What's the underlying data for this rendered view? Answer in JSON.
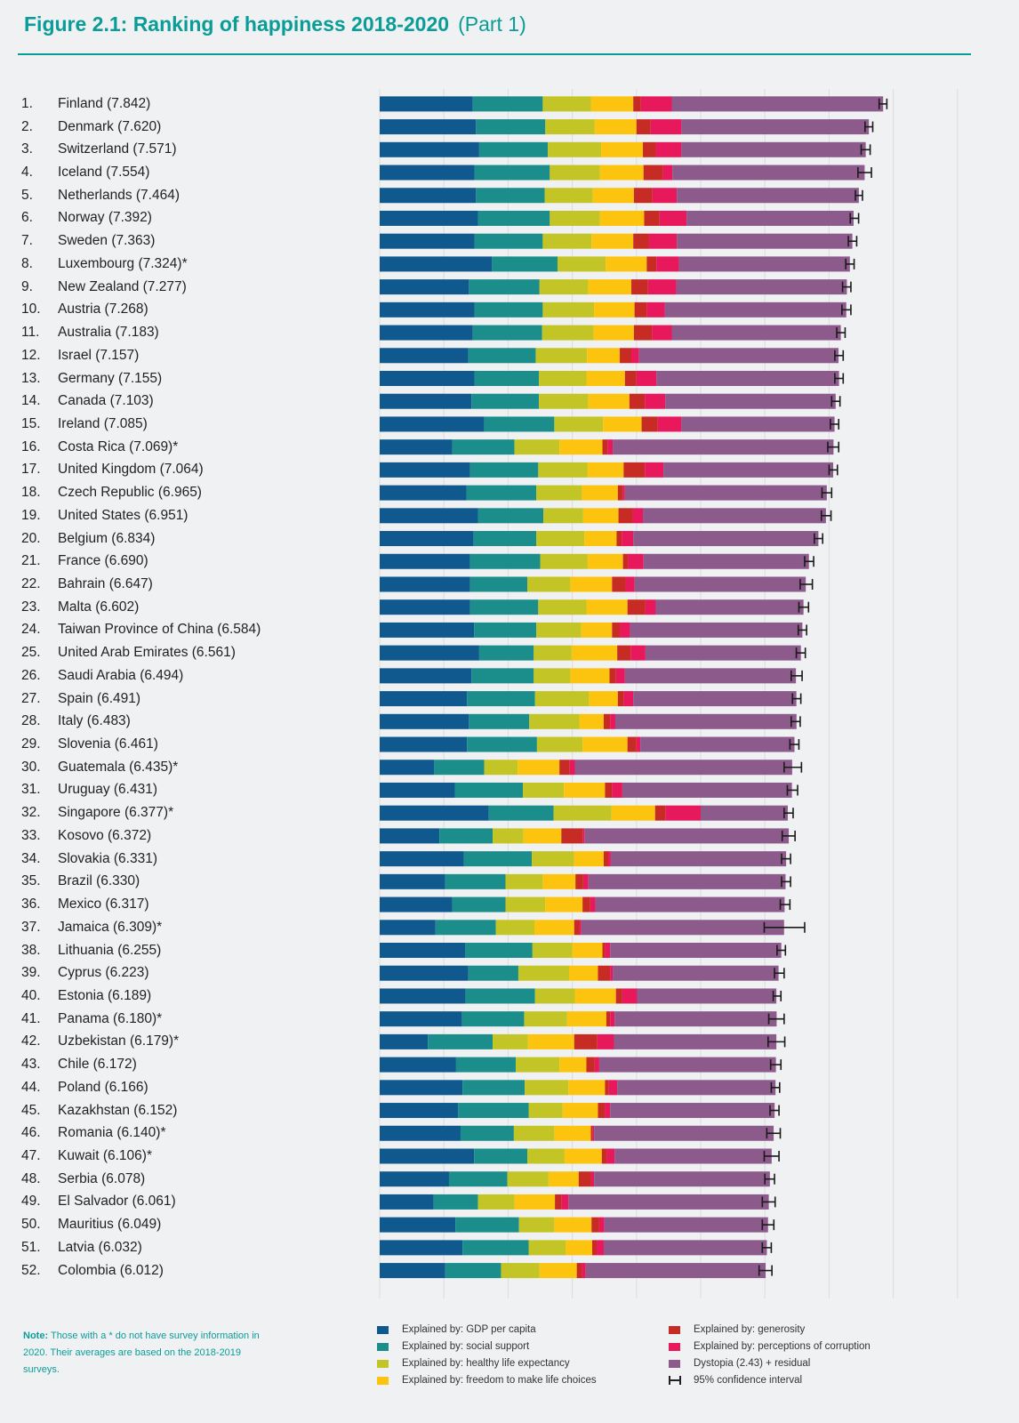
{
  "header": {
    "title": "Figure 2.1: Ranking of happiness 2018-2020",
    "part": "(Part 1)"
  },
  "note": {
    "label": "Note:",
    "text": "Those with a * do not have survey information in 2020. Their averages are based on the 2018-2019 surveys."
  },
  "legend": [
    {
      "label": "Explained by: GDP per capita",
      "color": "#10598e"
    },
    {
      "label": "Explained by: social support",
      "color": "#1b8e8c"
    },
    {
      "label": "Explained by: healthy life expectancy",
      "color": "#c3c527"
    },
    {
      "label": "Explained by: freedom to make life choices",
      "color": "#fcc40e"
    },
    {
      "label": "Explained by: generosity",
      "color": "#c72c24"
    },
    {
      "label": "Explained by: perceptions of corruption",
      "color": "#e8185c"
    },
    {
      "label": "Dystopia (2.43) + residual",
      "color": "#8d5a8c"
    },
    {
      "label": "95% confidence interval",
      "color": "#222222"
    }
  ],
  "chart_data": {
    "type": "bar",
    "orientation": "horizontal",
    "stacked": true,
    "title": "Figure 2.1: Ranking of happiness 2018-2020 (Part 1)",
    "xlabel": "",
    "ylabel": "",
    "xlim": [
      0,
      8
    ],
    "x_ticks": [
      "0",
      "1",
      "2",
      "3",
      "4",
      "5",
      "6",
      "7",
      "8"
    ],
    "grid": true,
    "legend_position": "bottom",
    "series_names": [
      "GDP per capita",
      "social support",
      "healthy life expectancy",
      "freedom to make life choices",
      "generosity",
      "perceptions of corruption",
      "Dystopia (2.43) + residual"
    ],
    "rows": [
      {
        "rank": "1.",
        "label": "Finland (7.842)",
        "score": 7.842,
        "ci": [
          7.78,
          7.9
        ],
        "segments": [
          1.45,
          1.09,
          0.75,
          0.66,
          0.12,
          0.48,
          3.292
        ]
      },
      {
        "rank": "2.",
        "label": "Denmark (7.620)",
        "score": 7.62,
        "ci": [
          7.56,
          7.68
        ],
        "segments": [
          1.5,
          1.08,
          0.77,
          0.65,
          0.22,
          0.48,
          2.92
        ]
      },
      {
        "rank": "3.",
        "label": "Switzerland (7.571)",
        "score": 7.571,
        "ci": [
          7.5,
          7.64
        ],
        "segments": [
          1.55,
          1.07,
          0.83,
          0.65,
          0.2,
          0.4,
          2.871
        ]
      },
      {
        "rank": "4.",
        "label": "Iceland (7.554)",
        "score": 7.554,
        "ci": [
          7.45,
          7.66
        ],
        "segments": [
          1.48,
          1.17,
          0.78,
          0.68,
          0.3,
          0.15,
          2.994
        ]
      },
      {
        "rank": "5.",
        "label": "Netherlands (7.464)",
        "score": 7.464,
        "ci": [
          7.41,
          7.52
        ],
        "segments": [
          1.5,
          1.07,
          0.75,
          0.64,
          0.29,
          0.38,
          2.834
        ]
      },
      {
        "rank": "6.",
        "label": "Norway (7.392)",
        "score": 7.392,
        "ci": [
          7.33,
          7.46
        ],
        "segments": [
          1.53,
          1.12,
          0.78,
          0.69,
          0.24,
          0.42,
          2.602
        ]
      },
      {
        "rank": "7.",
        "label": "Sweden (7.363)",
        "score": 7.363,
        "ci": [
          7.3,
          7.43
        ],
        "segments": [
          1.48,
          1.06,
          0.76,
          0.65,
          0.24,
          0.44,
          2.733
        ]
      },
      {
        "rank": "8.",
        "label": "Luxembourg (7.324)*",
        "score": 7.324,
        "ci": [
          7.26,
          7.39
        ],
        "segments": [
          1.75,
          1.02,
          0.75,
          0.64,
          0.15,
          0.35,
          2.664
        ]
      },
      {
        "rank": "9.",
        "label": "New Zealand (7.277)",
        "score": 7.277,
        "ci": [
          7.21,
          7.34
        ],
        "segments": [
          1.39,
          1.1,
          0.76,
          0.67,
          0.26,
          0.44,
          2.657
        ]
      },
      {
        "rank": "10.",
        "label": "Austria (7.268)",
        "score": 7.268,
        "ci": [
          7.2,
          7.34
        ],
        "segments": [
          1.48,
          1.06,
          0.8,
          0.63,
          0.19,
          0.28,
          2.828
        ]
      },
      {
        "rank": "11.",
        "label": "Australia (7.183)",
        "score": 7.183,
        "ci": [
          7.12,
          7.25
        ],
        "segments": [
          1.45,
          1.08,
          0.8,
          0.63,
          0.28,
          0.31,
          2.633
        ]
      },
      {
        "rank": "12.",
        "label": "Israel (7.157)",
        "score": 7.157,
        "ci": [
          7.09,
          7.22
        ],
        "segments": [
          1.38,
          1.05,
          0.8,
          0.51,
          0.18,
          0.12,
          3.107
        ]
      },
      {
        "rank": "13.",
        "label": "Germany (7.155)",
        "score": 7.155,
        "ci": [
          7.09,
          7.22
        ],
        "segments": [
          1.48,
          1.0,
          0.74,
          0.6,
          0.18,
          0.31,
          2.845
        ]
      },
      {
        "rank": "14.",
        "label": "Canada (7.103)",
        "score": 7.103,
        "ci": [
          7.04,
          7.17
        ],
        "segments": [
          1.43,
          1.05,
          0.77,
          0.64,
          0.24,
          0.32,
          2.653
        ]
      },
      {
        "rank": "15.",
        "label": "Ireland (7.085)",
        "score": 7.085,
        "ci": [
          7.02,
          7.15
        ],
        "segments": [
          1.63,
          1.09,
          0.76,
          0.6,
          0.25,
          0.37,
          2.385
        ]
      },
      {
        "rank": "16.",
        "label": "Costa Rica (7.069)*",
        "score": 7.069,
        "ci": [
          6.98,
          7.15
        ],
        "segments": [
          1.13,
          0.97,
          0.7,
          0.67,
          0.08,
          0.08,
          3.439
        ]
      },
      {
        "rank": "17.",
        "label": "United Kingdom (7.064)",
        "score": 7.064,
        "ci": [
          7.0,
          7.13
        ],
        "segments": [
          1.41,
          1.06,
          0.77,
          0.56,
          0.33,
          0.29,
          2.644
        ]
      },
      {
        "rank": "18.",
        "label": "Czech Republic (6.965)",
        "score": 6.965,
        "ci": [
          6.89,
          7.04
        ],
        "segments": [
          1.35,
          1.09,
          0.71,
          0.56,
          0.08,
          0.03,
          3.145
        ]
      },
      {
        "rank": "19.",
        "label": "United States (6.951)",
        "score": 6.951,
        "ci": [
          6.88,
          7.03
        ],
        "segments": [
          1.53,
          1.02,
          0.62,
          0.55,
          0.22,
          0.16,
          2.851
        ]
      },
      {
        "rank": "20.",
        "label": "Belgium (6.834)",
        "score": 6.834,
        "ci": [
          6.77,
          6.9
        ],
        "segments": [
          1.46,
          0.98,
          0.75,
          0.5,
          0.08,
          0.18,
          2.884
        ]
      },
      {
        "rank": "21.",
        "label": "France (6.690)",
        "score": 6.69,
        "ci": [
          6.62,
          6.76
        ],
        "segments": [
          1.41,
          1.09,
          0.74,
          0.55,
          0.08,
          0.24,
          2.576
        ]
      },
      {
        "rank": "22.",
        "label": "Bahrain (6.647)",
        "score": 6.647,
        "ci": [
          6.55,
          6.74
        ],
        "segments": [
          1.41,
          0.89,
          0.67,
          0.65,
          0.21,
          0.14,
          2.667
        ]
      },
      {
        "rank": "23.",
        "label": "Malta (6.602)",
        "score": 6.602,
        "ci": [
          6.53,
          6.68
        ],
        "segments": [
          1.41,
          1.06,
          0.75,
          0.64,
          0.28,
          0.16,
          2.302
        ]
      },
      {
        "rank": "24.",
        "label": "Taiwan Province of China (6.584)",
        "score": 6.584,
        "ci": [
          6.52,
          6.65
        ],
        "segments": [
          1.47,
          0.97,
          0.7,
          0.48,
          0.12,
          0.16,
          2.684
        ]
      },
      {
        "rank": "25.",
        "label": "United Arab Emirates (6.561)",
        "score": 6.561,
        "ci": [
          6.49,
          6.63
        ],
        "segments": [
          1.55,
          0.85,
          0.59,
          0.71,
          0.21,
          0.23,
          2.421
        ]
      },
      {
        "rank": "26.",
        "label": "Saudi Arabia (6.494)",
        "score": 6.494,
        "ci": [
          6.41,
          6.58
        ],
        "segments": [
          1.43,
          0.97,
          0.57,
          0.61,
          0.1,
          0.14,
          2.664
        ]
      },
      {
        "rank": "27.",
        "label": "Spain (6.491)",
        "score": 6.491,
        "ci": [
          6.43,
          6.56
        ],
        "segments": [
          1.36,
          1.06,
          0.84,
          0.45,
          0.09,
          0.15,
          2.541
        ]
      },
      {
        "rank": "28.",
        "label": "Italy (6.483)",
        "score": 6.483,
        "ci": [
          6.41,
          6.55
        ],
        "segments": [
          1.39,
          0.94,
          0.78,
          0.38,
          0.1,
          0.08,
          2.823
        ]
      },
      {
        "rank": "29.",
        "label": "Slovenia (6.461)",
        "score": 6.461,
        "ci": [
          6.39,
          6.53
        ],
        "segments": [
          1.36,
          1.09,
          0.71,
          0.7,
          0.14,
          0.06,
          2.401
        ]
      },
      {
        "rank": "30.",
        "label": "Guatemala (6.435)*",
        "score": 6.435,
        "ci": [
          6.3,
          6.57
        ],
        "segments": [
          0.85,
          0.78,
          0.52,
          0.65,
          0.16,
          0.08,
          3.385
        ]
      },
      {
        "rank": "31.",
        "label": "Uruguay (6.431)",
        "score": 6.431,
        "ci": [
          6.35,
          6.51
        ],
        "segments": [
          1.17,
          1.06,
          0.64,
          0.64,
          0.11,
          0.16,
          2.641
        ]
      },
      {
        "rank": "32.",
        "label": "Singapore (6.377)*",
        "score": 6.377,
        "ci": [
          6.3,
          6.44
        ],
        "segments": [
          1.7,
          1.01,
          0.9,
          0.68,
          0.16,
          0.55,
          1.357
        ]
      },
      {
        "rank": "33.",
        "label": "Kosovo (6.372)",
        "score": 6.372,
        "ci": [
          6.27,
          6.47
        ],
        "segments": [
          0.93,
          0.83,
          0.48,
          0.59,
          0.33,
          0.03,
          3.182
        ]
      },
      {
        "rank": "34.",
        "label": "Slovakia (6.331)",
        "score": 6.331,
        "ci": [
          6.26,
          6.4
        ],
        "segments": [
          1.31,
          1.06,
          0.66,
          0.46,
          0.07,
          0.04,
          2.731
        ]
      },
      {
        "rank": "35.",
        "label": "Brazil (6.330)",
        "score": 6.33,
        "ci": [
          6.26,
          6.4
        ],
        "segments": [
          1.02,
          0.94,
          0.58,
          0.51,
          0.12,
          0.08,
          3.072
        ]
      },
      {
        "rank": "36.",
        "label": "Mexico (6.317)",
        "score": 6.317,
        "ci": [
          6.24,
          6.39
        ],
        "segments": [
          1.13,
          0.83,
          0.62,
          0.58,
          0.12,
          0.08,
          2.947
        ]
      },
      {
        "rank": "37.",
        "label": "Jamaica (6.309)*",
        "score": 6.309,
        "ci": [
          5.99,
          6.62
        ],
        "segments": [
          0.87,
          0.94,
          0.6,
          0.62,
          0.08,
          0.03,
          3.159
        ]
      },
      {
        "rank": "38.",
        "label": "Lithuania (6.255)",
        "score": 6.255,
        "ci": [
          6.19,
          6.32
        ],
        "segments": [
          1.33,
          1.05,
          0.62,
          0.47,
          0.04,
          0.08,
          2.666
        ]
      },
      {
        "rank": "39.",
        "label": "Cyprus (6.223)",
        "score": 6.223,
        "ci": [
          6.15,
          6.3
        ],
        "segments": [
          1.38,
          0.78,
          0.79,
          0.45,
          0.19,
          0.04,
          2.583
        ]
      },
      {
        "rank": "40.",
        "label": "Estonia (6.189)",
        "score": 6.189,
        "ci": [
          6.13,
          6.25
        ],
        "segments": [
          1.34,
          1.08,
          0.62,
          0.64,
          0.1,
          0.23,
          2.169
        ]
      },
      {
        "rank": "41.",
        "label": "Panama (6.180)*",
        "score": 6.18,
        "ci": [
          6.06,
          6.3
        ],
        "segments": [
          1.28,
          0.97,
          0.67,
          0.61,
          0.06,
          0.07,
          2.523
        ]
      },
      {
        "rank": "42.",
        "label": "Uzbekistan (6.179)*",
        "score": 6.179,
        "ci": [
          6.05,
          6.31
        ],
        "segments": [
          0.75,
          1.01,
          0.55,
          0.72,
          0.36,
          0.26,
          2.529
        ]
      },
      {
        "rank": "43.",
        "label": "Chile (6.172)",
        "score": 6.172,
        "ci": [
          6.09,
          6.25
        ],
        "segments": [
          1.19,
          0.93,
          0.68,
          0.42,
          0.13,
          0.07,
          2.752
        ]
      },
      {
        "rank": "44.",
        "label": "Poland (6.166)",
        "score": 6.166,
        "ci": [
          6.1,
          6.23
        ],
        "segments": [
          1.29,
          0.97,
          0.68,
          0.57,
          0.06,
          0.13,
          2.466
        ]
      },
      {
        "rank": "45.",
        "label": "Kazakhstan (6.152)",
        "score": 6.152,
        "ci": [
          6.08,
          6.22
        ],
        "segments": [
          1.22,
          1.1,
          0.53,
          0.55,
          0.11,
          0.08,
          2.562
        ]
      },
      {
        "rank": "46.",
        "label": "Romania (6.140)*",
        "score": 6.14,
        "ci": [
          6.03,
          6.24
        ],
        "segments": [
          1.26,
          0.83,
          0.63,
          0.57,
          0.03,
          0.02,
          2.797
        ]
      },
      {
        "rank": "47.",
        "label": "Kuwait (6.106)*",
        "score": 6.106,
        "ci": [
          5.99,
          6.22
        ],
        "segments": [
          1.47,
          0.83,
          0.58,
          0.58,
          0.08,
          0.12,
          2.446
        ]
      },
      {
        "rank": "48.",
        "label": "Serbia (6.078)",
        "score": 6.078,
        "ci": [
          6.0,
          6.15
        ],
        "segments": [
          1.08,
          0.91,
          0.64,
          0.47,
          0.19,
          0.05,
          2.738
        ]
      },
      {
        "rank": "49.",
        "label": "El Salvador (6.061)",
        "score": 6.061,
        "ci": [
          5.96,
          6.16
        ],
        "segments": [
          0.84,
          0.69,
          0.57,
          0.63,
          0.1,
          0.11,
          3.121
        ]
      },
      {
        "rank": "50.",
        "label": "Mauritius (6.049)",
        "score": 6.049,
        "ci": [
          5.96,
          6.14
        ],
        "segments": [
          1.18,
          0.99,
          0.55,
          0.58,
          0.12,
          0.08,
          2.549
        ]
      },
      {
        "rank": "51.",
        "label": "Latvia (6.032)",
        "score": 6.032,
        "ci": [
          5.96,
          6.1
        ],
        "segments": [
          1.29,
          1.03,
          0.58,
          0.41,
          0.07,
          0.11,
          2.541
        ]
      },
      {
        "rank": "52.",
        "label": "Colombia (6.012)",
        "score": 6.012,
        "ci": [
          5.91,
          6.11
        ],
        "segments": [
          1.02,
          0.87,
          0.6,
          0.58,
          0.08,
          0.06,
          2.802
        ]
      }
    ]
  }
}
